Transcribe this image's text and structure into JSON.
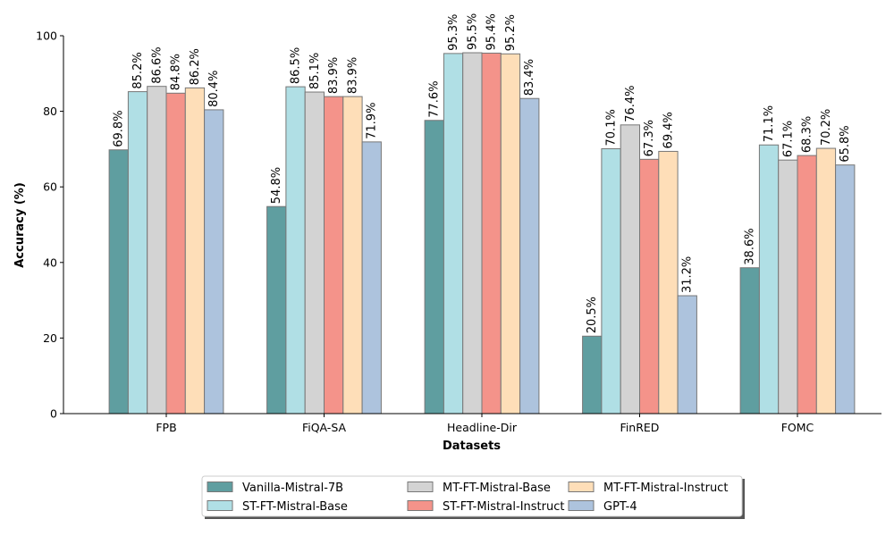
{
  "chart_data": {
    "type": "bar",
    "title": "",
    "xlabel": "Datasets",
    "ylabel": "Accuracy (%)",
    "ylim": [
      0,
      100
    ],
    "yticks": [
      0,
      20,
      40,
      60,
      80,
      100
    ],
    "grid": false,
    "legend_position": "bottom-center",
    "value_suffix": "%",
    "categories": [
      "FPB",
      "FiQA-SA",
      "Headline-Dir",
      "FinRED",
      "FOMC"
    ],
    "series": [
      {
        "name": "Vanilla-Mistral-7B",
        "color": "#5f9ea0",
        "values": [
          69.8,
          54.8,
          77.6,
          20.5,
          38.6
        ]
      },
      {
        "name": "ST-FT-Mistral-Base",
        "color": "#b0dfe5",
        "values": [
          85.2,
          86.5,
          95.3,
          70.1,
          71.1
        ]
      },
      {
        "name": "MT-FT-Mistral-Base",
        "color": "#d3d3d3",
        "values": [
          86.6,
          85.1,
          95.5,
          76.4,
          67.1
        ]
      },
      {
        "name": "ST-FT-Mistral-Instruct",
        "color": "#f4938a",
        "values": [
          84.8,
          83.9,
          95.4,
          67.3,
          68.3
        ]
      },
      {
        "name": "MT-FT-Mistral-Instruct",
        "color": "#fedeb8",
        "values": [
          86.2,
          83.9,
          95.2,
          69.4,
          70.2
        ]
      },
      {
        "name": "GPT-4",
        "color": "#adc3dd",
        "values": [
          80.4,
          71.9,
          83.4,
          31.2,
          65.8
        ]
      }
    ]
  }
}
